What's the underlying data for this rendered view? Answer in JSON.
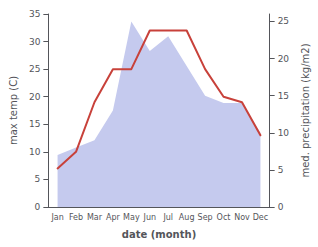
{
  "chart_data": {
    "type": "line",
    "xlabel": "date (month)",
    "ylabel": "max temp (C)",
    "y2label": "med. precipitation (kg/m2)",
    "categories": [
      "Jan",
      "Feb",
      "Mar",
      "Apr",
      "May",
      "Jun",
      "Jul",
      "Aug",
      "Sep",
      "Oct",
      "Nov",
      "Dec"
    ],
    "series": [
      {
        "type": "area",
        "axis": "y2",
        "color": "#c5caee",
        "values": [
          7,
          8,
          9,
          13,
          25,
          21,
          23,
          19,
          15,
          14,
          14,
          10
        ]
      },
      {
        "type": "line",
        "color": "#c8413a",
        "values": [
          7,
          10,
          19,
          25,
          25,
          32,
          32,
          32,
          25,
          20,
          19,
          13
        ]
      }
    ],
    "ylim": [
      0,
      35
    ],
    "yticks": [
      0,
      5,
      10,
      15,
      20,
      25,
      30,
      35
    ],
    "y2lim": [
      0,
      26
    ],
    "y2ticks": [
      0,
      5,
      10,
      15,
      20,
      25
    ],
    "grid": false
  }
}
